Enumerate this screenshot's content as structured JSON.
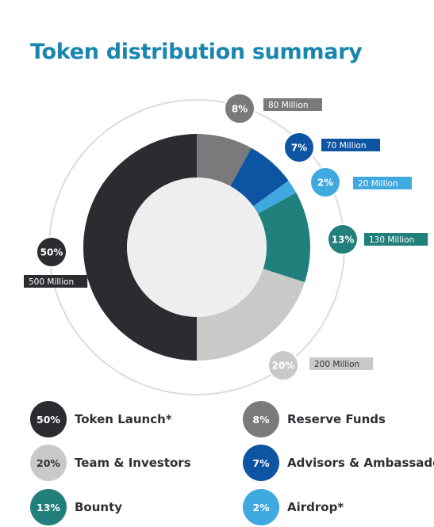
{
  "title": "Token distribution summary",
  "chart_data": {
    "type": "pie",
    "title": "Token distribution summary",
    "slices": [
      {
        "label": "Reserve Funds",
        "percent": 8,
        "pct_label": "8%",
        "amount": "80 Million",
        "color": "#7a7a7c"
      },
      {
        "label": "Advisors & Ambassadors",
        "percent": 7,
        "pct_label": "7%",
        "amount": "70 Million",
        "color": "#0d55a2"
      },
      {
        "label": "Airdrop*",
        "percent": 2,
        "pct_label": "2%",
        "amount": "20 Million",
        "color": "#3fa9e0"
      },
      {
        "label": "Bounty",
        "percent": 13,
        "pct_label": "13%",
        "amount": "130 Million",
        "color": "#217f7c"
      },
      {
        "label": "Team & Investors",
        "percent": 20,
        "pct_label": "20%",
        "amount": "200 Million",
        "color": "#c9c9c7"
      },
      {
        "label": "Token Launch*",
        "percent": 50,
        "pct_label": "50%",
        "amount": "500 Million",
        "color": "#2b2c30"
      }
    ],
    "legend_order": [
      "Token Launch*",
      "Reserve Funds",
      "Team & Investors",
      "Advisors & Ambassadors",
      "Bounty",
      "Airdrop*"
    ],
    "legend": "bottom, two columns"
  }
}
